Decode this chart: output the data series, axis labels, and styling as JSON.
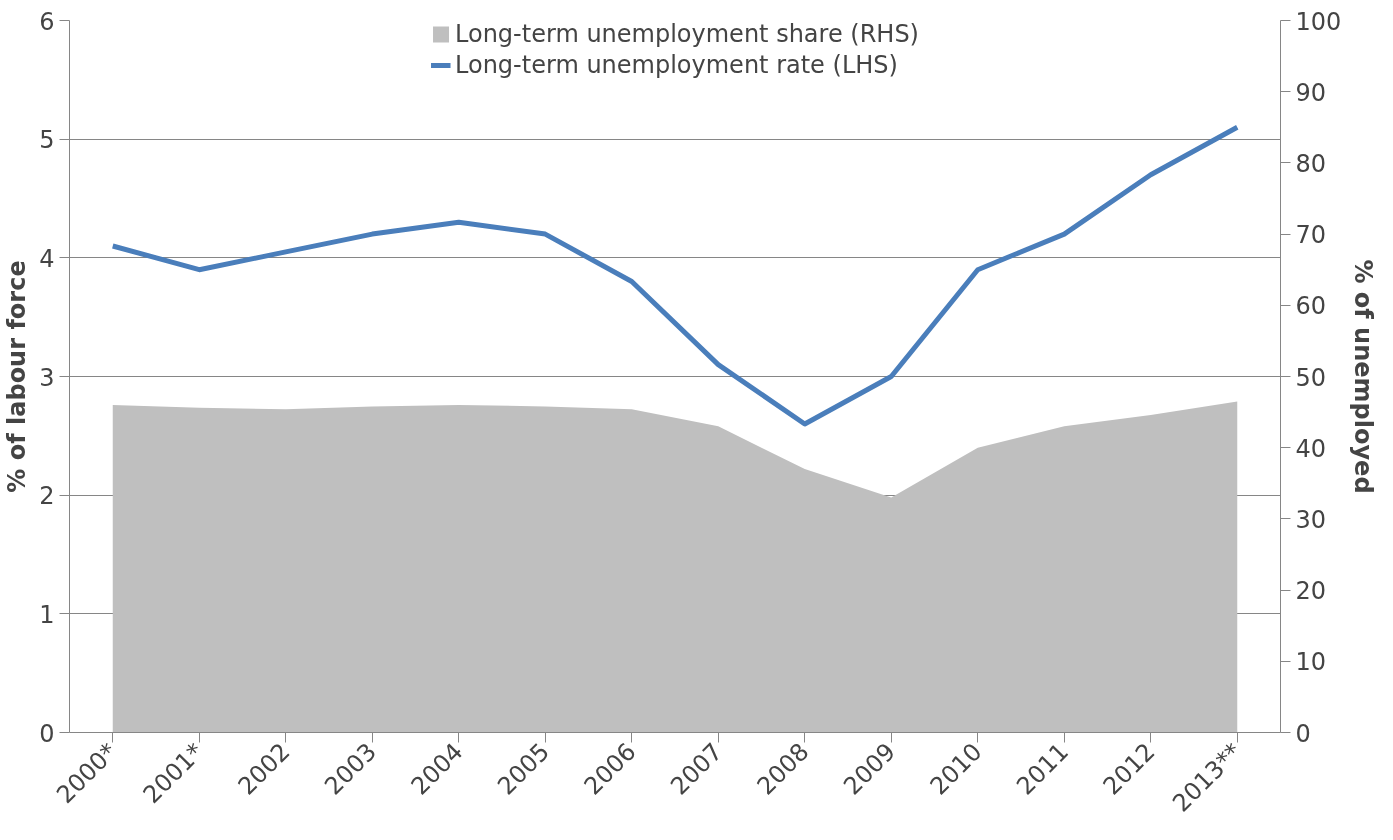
{
  "chart_data": {
    "type": "line",
    "ylabel": "% of labour force",
    "y2label": "% of unemployed",
    "categories": [
      "2000*",
      "2001*",
      "2002",
      "2003",
      "2004",
      "2005",
      "2006",
      "2007",
      "2008",
      "2009",
      "2010",
      "2011",
      "2012",
      "2013**"
    ],
    "series": [
      {
        "name": "Long-term unemployment share (RHS)",
        "type": "area",
        "axis": "y2",
        "color": "#bfbfbf",
        "values": [
          46,
          45.6,
          45.4,
          45.8,
          46,
          45.8,
          45.4,
          43,
          37,
          33,
          40,
          43,
          44.6,
          46.5
        ]
      },
      {
        "name": "Long-term unemployment rate (LHS)",
        "color": "#4a7ebb",
        "values": [
          4.1,
          3.9,
          4.05,
          4.2,
          4.3,
          4.2,
          3.8,
          3.1,
          2.6,
          3.0,
          3.9,
          4.2,
          4.7,
          5.1
        ]
      }
    ],
    "ylim": [
      0,
      6
    ],
    "yticks": [
      0,
      1,
      2,
      3,
      4,
      5,
      6
    ],
    "y2lim": [
      0,
      100
    ],
    "y2ticks": [
      0,
      10,
      20,
      30,
      40,
      50,
      60,
      70,
      80,
      90,
      100
    ],
    "grid": "y",
    "legend": "top",
    "marker": "none",
    "line_style": "solid"
  }
}
